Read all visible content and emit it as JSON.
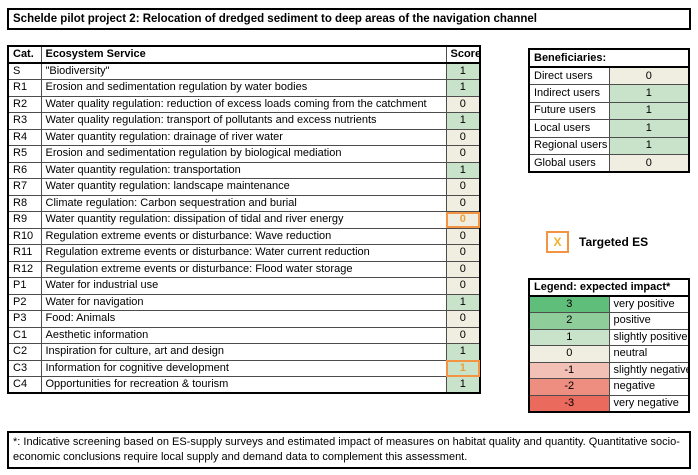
{
  "title": "Schelde pilot project 2: Relocation of dredged sediment to deep areas of the navigation channel",
  "colors": {
    "level_3": "#5fbe79",
    "level_2": "#8fce9b",
    "level_1": "#c8e3c9",
    "level_0": "#efeee1",
    "level_m1": "#f3c0b6",
    "level_m2": "#ee8e80",
    "level_m3": "#ea6a5d",
    "target_border": "#f29441",
    "target_text": "#e9a13b",
    "target_x": "#f2b02c"
  },
  "main_table": {
    "headers": {
      "cat": "Cat.",
      "service": "Ecosystem Service",
      "score": "Score"
    },
    "rows": [
      {
        "cat": "S",
        "service": "\"Biodiversity\"",
        "score": "1",
        "level": 1,
        "targeted": false
      },
      {
        "cat": "R1",
        "service": "Erosion and sedimentation regulation by water bodies",
        "score": "1",
        "level": 1,
        "targeted": false
      },
      {
        "cat": "R2",
        "service": "Water quality regulation: reduction of excess loads coming from the catchment",
        "score": "0",
        "level": 0,
        "targeted": false
      },
      {
        "cat": "R3",
        "service": "Water quality regulation: transport of pollutants and excess nutrients",
        "score": "1",
        "level": 1,
        "targeted": false
      },
      {
        "cat": "R4",
        "service": "Water quantity regulation: drainage of river water",
        "score": "0",
        "level": 0,
        "targeted": false
      },
      {
        "cat": "R5",
        "service": "Erosion and sedimentation regulation by biological mediation",
        "score": "0",
        "level": 0,
        "targeted": false
      },
      {
        "cat": "R6",
        "service": "Water quantity regulation: transportation",
        "score": "1",
        "level": 1,
        "targeted": false
      },
      {
        "cat": "R7",
        "service": "Water quantity regulation: landscape maintenance",
        "score": "0",
        "level": 0,
        "targeted": false
      },
      {
        "cat": "R8",
        "service": "Climate regulation: Carbon sequestration and burial",
        "score": "0",
        "level": 0,
        "targeted": false
      },
      {
        "cat": "R9",
        "service": "Water quantity regulation: dissipation of tidal and river energy",
        "score": "0",
        "level": 0,
        "targeted": true
      },
      {
        "cat": "R10",
        "service": "Regulation extreme events or disturbance: Wave reduction",
        "score": "0",
        "level": 0,
        "targeted": false
      },
      {
        "cat": "R11",
        "service": "Regulation extreme events or disturbance: Water current reduction",
        "score": "0",
        "level": 0,
        "targeted": false
      },
      {
        "cat": "R12",
        "service": "Regulation extreme events or disturbance: Flood water storage",
        "score": "0",
        "level": 0,
        "targeted": false
      },
      {
        "cat": "P1",
        "service": "Water for industrial use",
        "score": "0",
        "level": 0,
        "targeted": false
      },
      {
        "cat": "P2",
        "service": "Water for navigation",
        "score": "1",
        "level": 1,
        "targeted": false
      },
      {
        "cat": "P3",
        "service": "Food: Animals",
        "score": "0",
        "level": 0,
        "targeted": false
      },
      {
        "cat": "C1",
        "service": "Aesthetic information",
        "score": "0",
        "level": 0,
        "targeted": false
      },
      {
        "cat": "C2",
        "service": "Inspiration for culture, art and design",
        "score": "1",
        "level": 1,
        "targeted": false
      },
      {
        "cat": "C3",
        "service": "Information for cognitive development",
        "score": "1",
        "level": 1,
        "targeted": true
      },
      {
        "cat": "C4",
        "service": "Opportunities for recreation & tourism",
        "score": "1",
        "level": 1,
        "targeted": false
      }
    ]
  },
  "beneficiaries": {
    "title": "Beneficiaries:",
    "rows": [
      {
        "label": "Direct users",
        "value": "0",
        "level": 0
      },
      {
        "label": "Indirect users",
        "value": "1",
        "level": 1
      },
      {
        "label": "Future users",
        "value": "1",
        "level": 1
      },
      {
        "label": "Local users",
        "value": "1",
        "level": 1
      },
      {
        "label": "Regional users",
        "value": "1",
        "level": 1
      },
      {
        "label": "Global users",
        "value": "0",
        "level": 0
      }
    ]
  },
  "targeted_es": {
    "symbol": "X",
    "label": "Targeted ES"
  },
  "legend": {
    "title": "Legend: expected  impact*",
    "rows": [
      {
        "value": "3",
        "label": "very positive",
        "level": 3
      },
      {
        "value": "2",
        "label": "positive",
        "level": 2
      },
      {
        "value": "1",
        "label": "slightly positive",
        "level": 1
      },
      {
        "value": "0",
        "label": "neutral",
        "level": 0
      },
      {
        "value": "-1",
        "label": "slightly negative",
        "level": -1
      },
      {
        "value": "-2",
        "label": "negative",
        "level": -2
      },
      {
        "value": "-3",
        "label": "very negative",
        "level": -3
      }
    ]
  },
  "footnote": "*: Indicative screening based on ES-supply surveys and estimated impact of measures on habitat quality and quantity. Quantitative socio-economic conclusions require local supply and demand data to complement this assessment."
}
